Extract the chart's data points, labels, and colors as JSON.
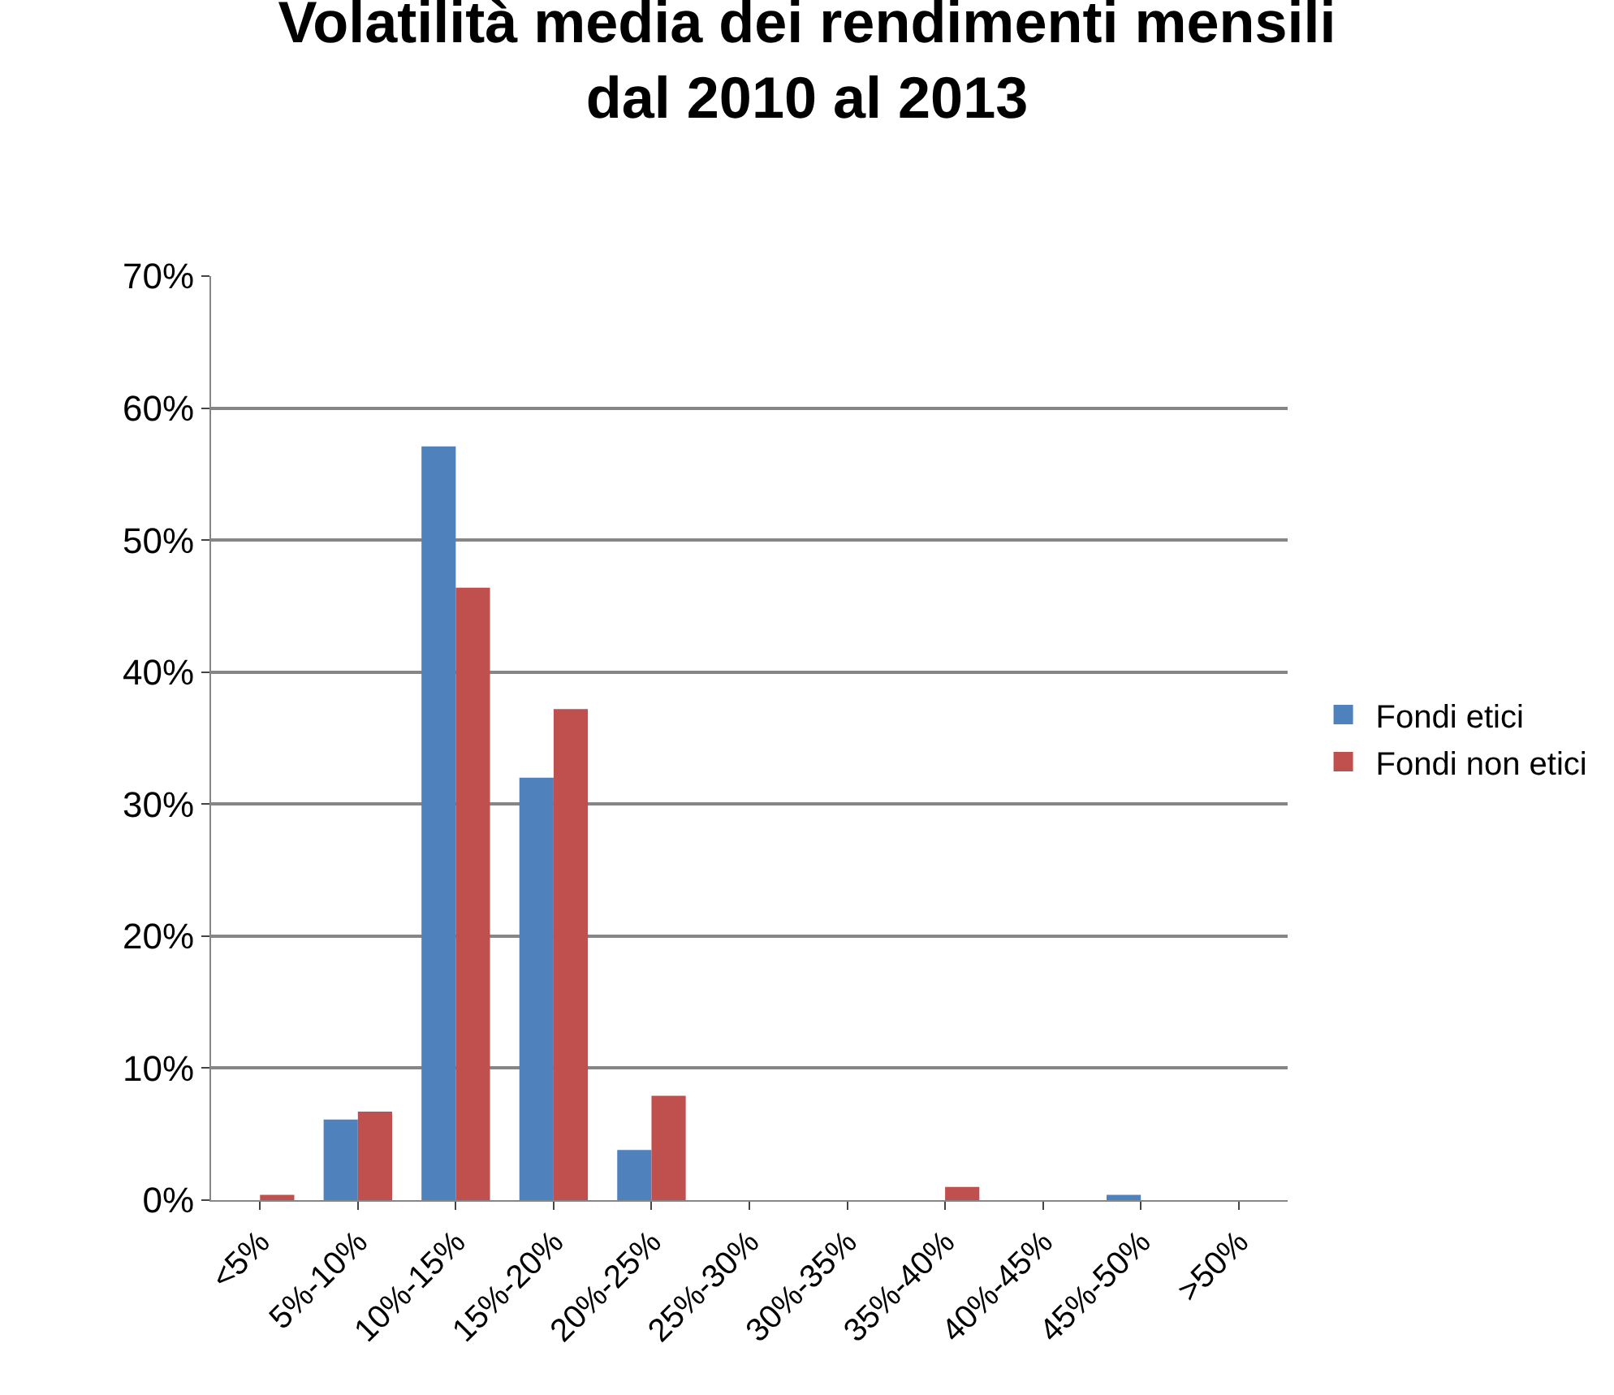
{
  "chart_data": {
    "type": "bar",
    "title": "Volatilità media dei rendimenti mensili\ndal 2010 al 2013",
    "categories": [
      "<5%",
      "5%-10%",
      "10%-15%",
      "15%-20%",
      "20%-25%",
      "25%-30%",
      "30%-35%",
      "35%-40%",
      "40%-45%",
      "45%-50%",
      ">50%"
    ],
    "series": [
      {
        "name": "Fondi etici",
        "color": "#4f81bd",
        "values": [
          0,
          6.1,
          57.1,
          32.0,
          3.8,
          0,
          0,
          0,
          0,
          0.4,
          0
        ]
      },
      {
        "name": "Fondi non etici",
        "color": "#c0504d",
        "values": [
          0.4,
          6.7,
          46.4,
          37.2,
          7.9,
          0,
          0,
          1.0,
          0,
          0,
          0
        ]
      }
    ],
    "ylim": [
      0,
      70
    ],
    "yticks": [
      {
        "value": 0,
        "label": "0%"
      },
      {
        "value": 10,
        "label": "10%"
      },
      {
        "value": 20,
        "label": "20%"
      },
      {
        "value": 30,
        "label": "30%"
      },
      {
        "value": 40,
        "label": "40%"
      },
      {
        "value": 50,
        "label": "50%"
      },
      {
        "value": 60,
        "label": "60%"
      },
      {
        "value": 70,
        "label": "70%"
      }
    ],
    "grid": "y",
    "legend": "right"
  }
}
